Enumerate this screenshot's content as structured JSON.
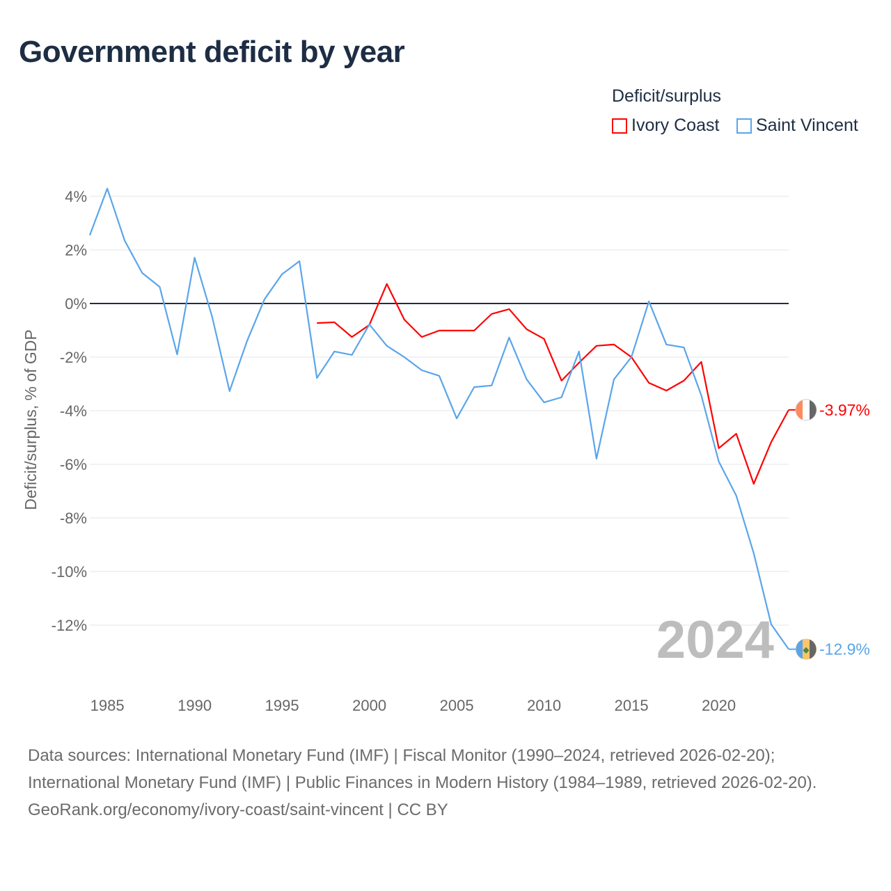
{
  "title": "Government deficit by year",
  "legend": {
    "title": "Deficit/surplus",
    "items": [
      {
        "label": "Ivory Coast",
        "color": "#ff0000"
      },
      {
        "label": "Saint Vincent",
        "color": "#5aa5ea"
      }
    ]
  },
  "year_watermark": "2024",
  "source_lines": [
    "Data sources: International Monetary Fund (IMF) | Fiscal Monitor (1990–2024, retrieved 2026-02-20);",
    "International Monetary Fund (IMF) | Public Finances in Modern History (1984–1989, retrieved 2026-02-20).",
    "GeoRank.org/economy/ivory-coast/saint-vincent | CC BY"
  ],
  "chart_data": {
    "type": "line",
    "title": "Government deficit by year",
    "xlabel": "",
    "ylabel": "Deficit/surplus, % of GDP",
    "xlim": [
      1984,
      2024
    ],
    "ylim": [
      -13.8,
      4.6
    ],
    "xticks": [
      1985,
      1990,
      1995,
      2000,
      2005,
      2010,
      2015,
      2020
    ],
    "yticks": [
      4,
      2,
      0,
      -2,
      -4,
      -6,
      -8,
      -10,
      -12
    ],
    "ytick_labels": [
      "4%",
      "2%",
      "0%",
      "-2%",
      "-4%",
      "-6%",
      "-8%",
      "-10%",
      "-12%"
    ],
    "grid": true,
    "legend_position": "top-right",
    "series": [
      {
        "name": "Ivory Coast",
        "color": "#ff0000",
        "end_label": "-3.97%",
        "x": [
          1997,
          1998,
          1999,
          2000,
          2001,
          2002,
          2003,
          2004,
          2005,
          2006,
          2007,
          2008,
          2009,
          2010,
          2011,
          2012,
          2013,
          2014,
          2015,
          2016,
          2017,
          2018,
          2019,
          2020,
          2021,
          2022,
          2023,
          2024
        ],
        "values": [
          -0.73,
          -0.7,
          -1.25,
          -0.8,
          0.73,
          -0.6,
          -1.25,
          -1.01,
          -1.01,
          -1.01,
          -0.39,
          -0.21,
          -0.96,
          -1.32,
          -2.88,
          -2.21,
          -1.58,
          -1.53,
          -2.0,
          -2.96,
          -3.25,
          -2.88,
          -2.18,
          -5.4,
          -4.86,
          -6.73,
          -5.17,
          -3.97
        ]
      },
      {
        "name": "Saint Vincent",
        "color": "#5aa5ea",
        "end_label": "-12.9%",
        "x": [
          1984,
          1985,
          1986,
          1987,
          1988,
          1989,
          1990,
          1991,
          1992,
          1993,
          1994,
          1995,
          1996,
          1997,
          1998,
          1999,
          2000,
          2001,
          2002,
          2003,
          2004,
          2005,
          2006,
          2007,
          2008,
          2009,
          2010,
          2011,
          2012,
          2013,
          2014,
          2015,
          2016,
          2017,
          2018,
          2019,
          2020,
          2021,
          2022,
          2023,
          2024
        ],
        "values": [
          2.55,
          4.29,
          2.34,
          1.14,
          0.62,
          -1.9,
          1.71,
          -0.49,
          -3.27,
          -1.4,
          0.16,
          1.09,
          1.58,
          -2.78,
          -1.79,
          -1.92,
          -0.78,
          -1.58,
          -2.0,
          -2.49,
          -2.7,
          -4.29,
          -3.12,
          -3.06,
          -1.27,
          -2.83,
          -3.69,
          -3.5,
          -1.79,
          -5.79,
          -2.83,
          -2.0,
          0.08,
          -1.53,
          -1.64,
          -3.43,
          -5.9,
          -7.17,
          -9.32,
          -11.97,
          -12.9
        ]
      }
    ]
  }
}
